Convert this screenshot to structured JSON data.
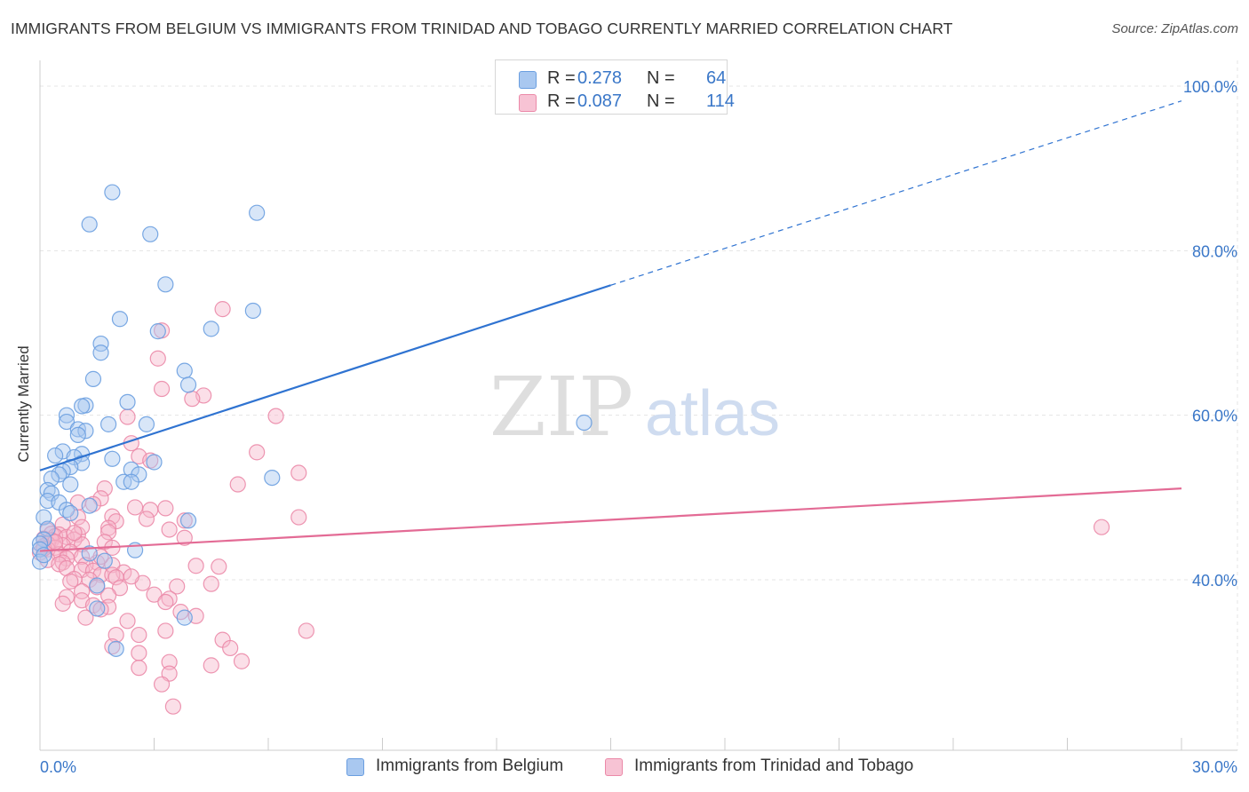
{
  "header": {
    "title": "IMMIGRANTS FROM BELGIUM VS IMMIGRANTS FROM TRINIDAD AND TOBAGO CURRENTLY MARRIED CORRELATION CHART",
    "source": "Source: ZipAtlas.com"
  },
  "watermark": {
    "zip": "ZIP",
    "atlas": "atlas"
  },
  "stats_legend": {
    "rows": [
      {
        "r_label": "R =",
        "r_value": "0.278",
        "n_label": "N =",
        "n_value": "64"
      },
      {
        "r_label": "R =",
        "r_value": "0.087",
        "n_label": "N =",
        "n_value": "114"
      }
    ]
  },
  "chart_data": {
    "type": "scatter",
    "title": "IMMIGRANTS FROM BELGIUM VS IMMIGRANTS FROM TRINIDAD AND TOBAGO CURRENTLY MARRIED CORRELATION CHART",
    "ylabel": "Currently Married",
    "xlabel": "",
    "xlim": [
      0,
      30
    ],
    "ylim": [
      20,
      102
    ],
    "x_tick_labels": [
      "0.0%",
      "30.0%"
    ],
    "y_ticks": [
      40,
      60,
      80,
      100
    ],
    "y_tick_labels": [
      "40.0%",
      "60.0%",
      "80.0%",
      "100.0%"
    ],
    "grid": true,
    "legend_position": "bottom",
    "colors": {
      "belgium_fill": "#a9c8f0",
      "belgium_stroke": "#6a9ee0",
      "belgium_line": "#2f73d1",
      "trinidad_fill": "#f7b8cc",
      "trinidad_stroke": "#eb89a8",
      "trinidad_line": "#e36b95",
      "tick_label": "#3a77c8"
    },
    "series": [
      {
        "name": "Immigrants from Belgium",
        "r": 0.278,
        "n": 64,
        "trend": {
          "x0": 0,
          "y0": 53.3,
          "x1": 15,
          "y1": 75.8,
          "dashed_to_x": 30,
          "dashed_to_y": 98.2
        },
        "points": [
          [
            1.9,
            87.1
          ],
          [
            1.3,
            83.2
          ],
          [
            2.9,
            82.0
          ],
          [
            5.7,
            84.6
          ],
          [
            3.3,
            75.9
          ],
          [
            2.1,
            71.7
          ],
          [
            4.5,
            70.5
          ],
          [
            3.1,
            70.2
          ],
          [
            1.6,
            68.7
          ],
          [
            5.6,
            72.7
          ],
          [
            1.6,
            67.6
          ],
          [
            3.8,
            65.4
          ],
          [
            1.4,
            64.4
          ],
          [
            3.9,
            63.7
          ],
          [
            2.3,
            61.6
          ],
          [
            1.2,
            61.2
          ],
          [
            1.1,
            61.1
          ],
          [
            0.7,
            60.0
          ],
          [
            0.7,
            59.2
          ],
          [
            1.8,
            58.9
          ],
          [
            2.8,
            58.9
          ],
          [
            14.3,
            59.1
          ],
          [
            1.0,
            58.3
          ],
          [
            1.2,
            58.1
          ],
          [
            1.0,
            57.6
          ],
          [
            0.6,
            55.6
          ],
          [
            1.1,
            55.3
          ],
          [
            0.4,
            55.1
          ],
          [
            0.9,
            54.9
          ],
          [
            1.9,
            54.7
          ],
          [
            1.1,
            54.2
          ],
          [
            3.0,
            54.3
          ],
          [
            0.8,
            53.7
          ],
          [
            2.4,
            53.4
          ],
          [
            0.6,
            53.2
          ],
          [
            0.5,
            52.8
          ],
          [
            2.6,
            52.8
          ],
          [
            0.3,
            52.3
          ],
          [
            2.2,
            51.9
          ],
          [
            2.4,
            51.9
          ],
          [
            6.1,
            52.4
          ],
          [
            0.8,
            51.6
          ],
          [
            0.2,
            50.9
          ],
          [
            0.3,
            50.5
          ],
          [
            0.2,
            49.6
          ],
          [
            0.5,
            49.4
          ],
          [
            1.3,
            49.0
          ],
          [
            0.7,
            48.5
          ],
          [
            0.8,
            48.1
          ],
          [
            0.1,
            47.6
          ],
          [
            3.9,
            47.2
          ],
          [
            0.2,
            46.2
          ],
          [
            0.1,
            44.9
          ],
          [
            2.5,
            43.6
          ],
          [
            1.3,
            43.2
          ],
          [
            0.0,
            44.4
          ],
          [
            0.0,
            43.7
          ],
          [
            0.0,
            42.2
          ],
          [
            1.7,
            42.3
          ],
          [
            1.5,
            39.3
          ],
          [
            1.5,
            36.5
          ],
          [
            3.8,
            35.4
          ],
          [
            2.0,
            31.6
          ],
          [
            0.1,
            43.0
          ]
        ]
      },
      {
        "name": "Immigrants from Trinidad and Tobago",
        "r": 0.087,
        "n": 114,
        "trend": {
          "x0": 0,
          "y0": 43.5,
          "x1": 30,
          "y1": 51.1
        },
        "points": [
          [
            4.8,
            72.9
          ],
          [
            3.2,
            70.3
          ],
          [
            3.1,
            66.9
          ],
          [
            3.2,
            63.2
          ],
          [
            4.3,
            62.4
          ],
          [
            4.0,
            62.0
          ],
          [
            6.2,
            59.9
          ],
          [
            2.3,
            59.8
          ],
          [
            2.4,
            56.6
          ],
          [
            5.7,
            55.5
          ],
          [
            2.6,
            55.0
          ],
          [
            2.9,
            54.5
          ],
          [
            6.8,
            53.0
          ],
          [
            5.2,
            51.6
          ],
          [
            1.7,
            51.1
          ],
          [
            1.6,
            49.9
          ],
          [
            1.0,
            49.4
          ],
          [
            1.4,
            49.2
          ],
          [
            2.5,
            48.8
          ],
          [
            3.3,
            48.7
          ],
          [
            2.9,
            48.5
          ],
          [
            1.9,
            47.7
          ],
          [
            1.0,
            47.6
          ],
          [
            2.0,
            47.1
          ],
          [
            6.8,
            47.6
          ],
          [
            3.8,
            47.2
          ],
          [
            27.9,
            46.4
          ],
          [
            0.6,
            46.7
          ],
          [
            1.8,
            46.3
          ],
          [
            3.4,
            46.1
          ],
          [
            0.2,
            46.0
          ],
          [
            1.8,
            45.8
          ],
          [
            1.0,
            45.5
          ],
          [
            0.3,
            45.6
          ],
          [
            0.5,
            45.5
          ],
          [
            0.4,
            45.3
          ],
          [
            0.7,
            45.2
          ],
          [
            3.8,
            45.1
          ],
          [
            0.1,
            45.0
          ],
          [
            0.9,
            44.9
          ],
          [
            0.3,
            44.8
          ],
          [
            1.7,
            44.6
          ],
          [
            0.2,
            44.4
          ],
          [
            1.1,
            44.3
          ],
          [
            0.6,
            44.2
          ],
          [
            0.1,
            44.1
          ],
          [
            0.4,
            43.9
          ],
          [
            1.9,
            43.9
          ],
          [
            0.2,
            43.7
          ],
          [
            0.8,
            43.4
          ],
          [
            0.0,
            43.3
          ],
          [
            0.5,
            43.1
          ],
          [
            1.1,
            42.8
          ],
          [
            0.7,
            42.6
          ],
          [
            0.2,
            42.4
          ],
          [
            0.6,
            42.1
          ],
          [
            1.5,
            42.1
          ],
          [
            0.5,
            41.9
          ],
          [
            1.2,
            41.8
          ],
          [
            1.9,
            41.8
          ],
          [
            4.1,
            41.7
          ],
          [
            4.7,
            41.6
          ],
          [
            0.7,
            41.4
          ],
          [
            1.1,
            41.2
          ],
          [
            1.4,
            41.1
          ],
          [
            2.2,
            40.9
          ],
          [
            1.6,
            40.6
          ],
          [
            1.9,
            40.6
          ],
          [
            2.0,
            40.3
          ],
          [
            0.9,
            40.1
          ],
          [
            1.3,
            40.0
          ],
          [
            0.8,
            39.8
          ],
          [
            4.5,
            39.5
          ],
          [
            3.6,
            39.2
          ],
          [
            1.5,
            39.1
          ],
          [
            2.1,
            39.0
          ],
          [
            1.1,
            38.6
          ],
          [
            3.0,
            38.2
          ],
          [
            1.8,
            38.1
          ],
          [
            0.7,
            37.9
          ],
          [
            3.4,
            37.7
          ],
          [
            1.1,
            37.5
          ],
          [
            3.3,
            37.3
          ],
          [
            0.6,
            37.1
          ],
          [
            1.4,
            36.9
          ],
          [
            1.8,
            36.7
          ],
          [
            1.6,
            36.4
          ],
          [
            3.7,
            36.1
          ],
          [
            1.2,
            35.4
          ],
          [
            2.3,
            35.0
          ],
          [
            7.0,
            33.8
          ],
          [
            3.3,
            33.8
          ],
          [
            2.0,
            33.3
          ],
          [
            2.6,
            33.3
          ],
          [
            4.8,
            32.7
          ],
          [
            1.9,
            31.9
          ],
          [
            2.6,
            31.1
          ],
          [
            5.3,
            30.1
          ],
          [
            3.4,
            30.0
          ],
          [
            4.5,
            29.6
          ],
          [
            2.6,
            29.3
          ],
          [
            3.4,
            28.6
          ],
          [
            3.2,
            27.3
          ],
          [
            3.5,
            24.6
          ],
          [
            2.7,
            39.6
          ],
          [
            2.4,
            40.4
          ],
          [
            1.6,
            42.8
          ],
          [
            0.1,
            43.8
          ],
          [
            1.1,
            46.4
          ],
          [
            2.8,
            47.4
          ],
          [
            0.9,
            45.7
          ],
          [
            0.4,
            44.6
          ],
          [
            5.0,
            31.7
          ],
          [
            4.1,
            35.6
          ]
        ]
      }
    ]
  },
  "bottom_legend": {
    "items": [
      {
        "label": "Immigrants from Belgium"
      },
      {
        "label": "Immigrants from Trinidad and Tobago"
      }
    ]
  }
}
